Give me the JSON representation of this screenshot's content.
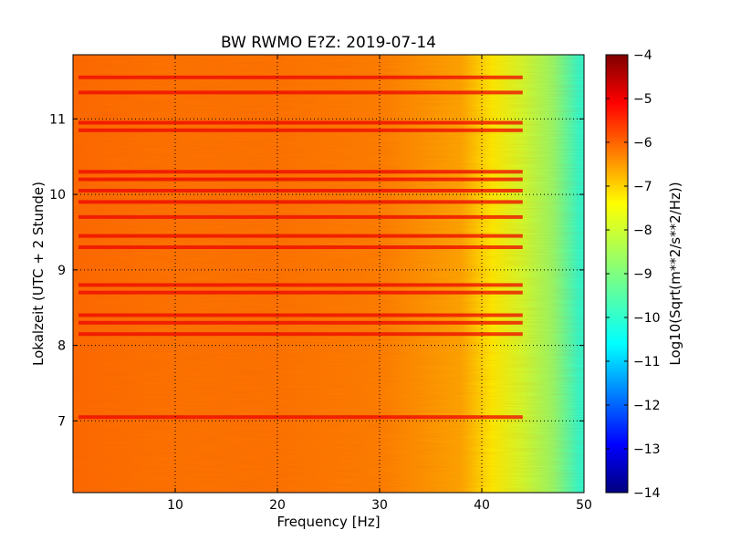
{
  "chart_data": {
    "type": "heatmap",
    "title": "BW RWMO E?Z: 2019-07-14",
    "xlabel": "Frequency [Hz]",
    "ylabel": "Lokalzeit (UTC + 2 Stunde)",
    "xlim": [
      0,
      50
    ],
    "ylim": [
      11.85,
      6.05
    ],
    "x_ticks": [
      10,
      20,
      30,
      40,
      50
    ],
    "y_ticks": [
      7,
      8,
      9,
      10,
      11
    ],
    "grid": true,
    "colormap": "jet",
    "colorbar": {
      "label": "Log10(Sqrt(m**2/s**2/Hz))",
      "range": [
        -14,
        -4
      ],
      "ticks": [
        -4,
        -5,
        -6,
        -7,
        -8,
        -9,
        -10,
        -11,
        -12,
        -13,
        -14
      ]
    },
    "typical_levels": [
      {
        "frequency_hz": 0,
        "value": -6.3
      },
      {
        "frequency_hz": 10,
        "value": -6.4
      },
      {
        "frequency_hz": 20,
        "value": -6.4
      },
      {
        "frequency_hz": 30,
        "value": -6.5
      },
      {
        "frequency_hz": 38,
        "value": -6.9
      },
      {
        "frequency_hz": 41,
        "value": -7.6
      },
      {
        "frequency_hz": 44,
        "value": -8.2
      },
      {
        "frequency_hz": 47,
        "value": -8.8
      },
      {
        "frequency_hz": 49.5,
        "value": -9.8
      }
    ],
    "strong_bands_hours": [
      7.05,
      8.15,
      8.3,
      8.4,
      8.7,
      8.8,
      9.3,
      9.45,
      9.7,
      9.9,
      10.05,
      10.2,
      10.3,
      10.85,
      10.95,
      11.35,
      11.55
    ]
  }
}
